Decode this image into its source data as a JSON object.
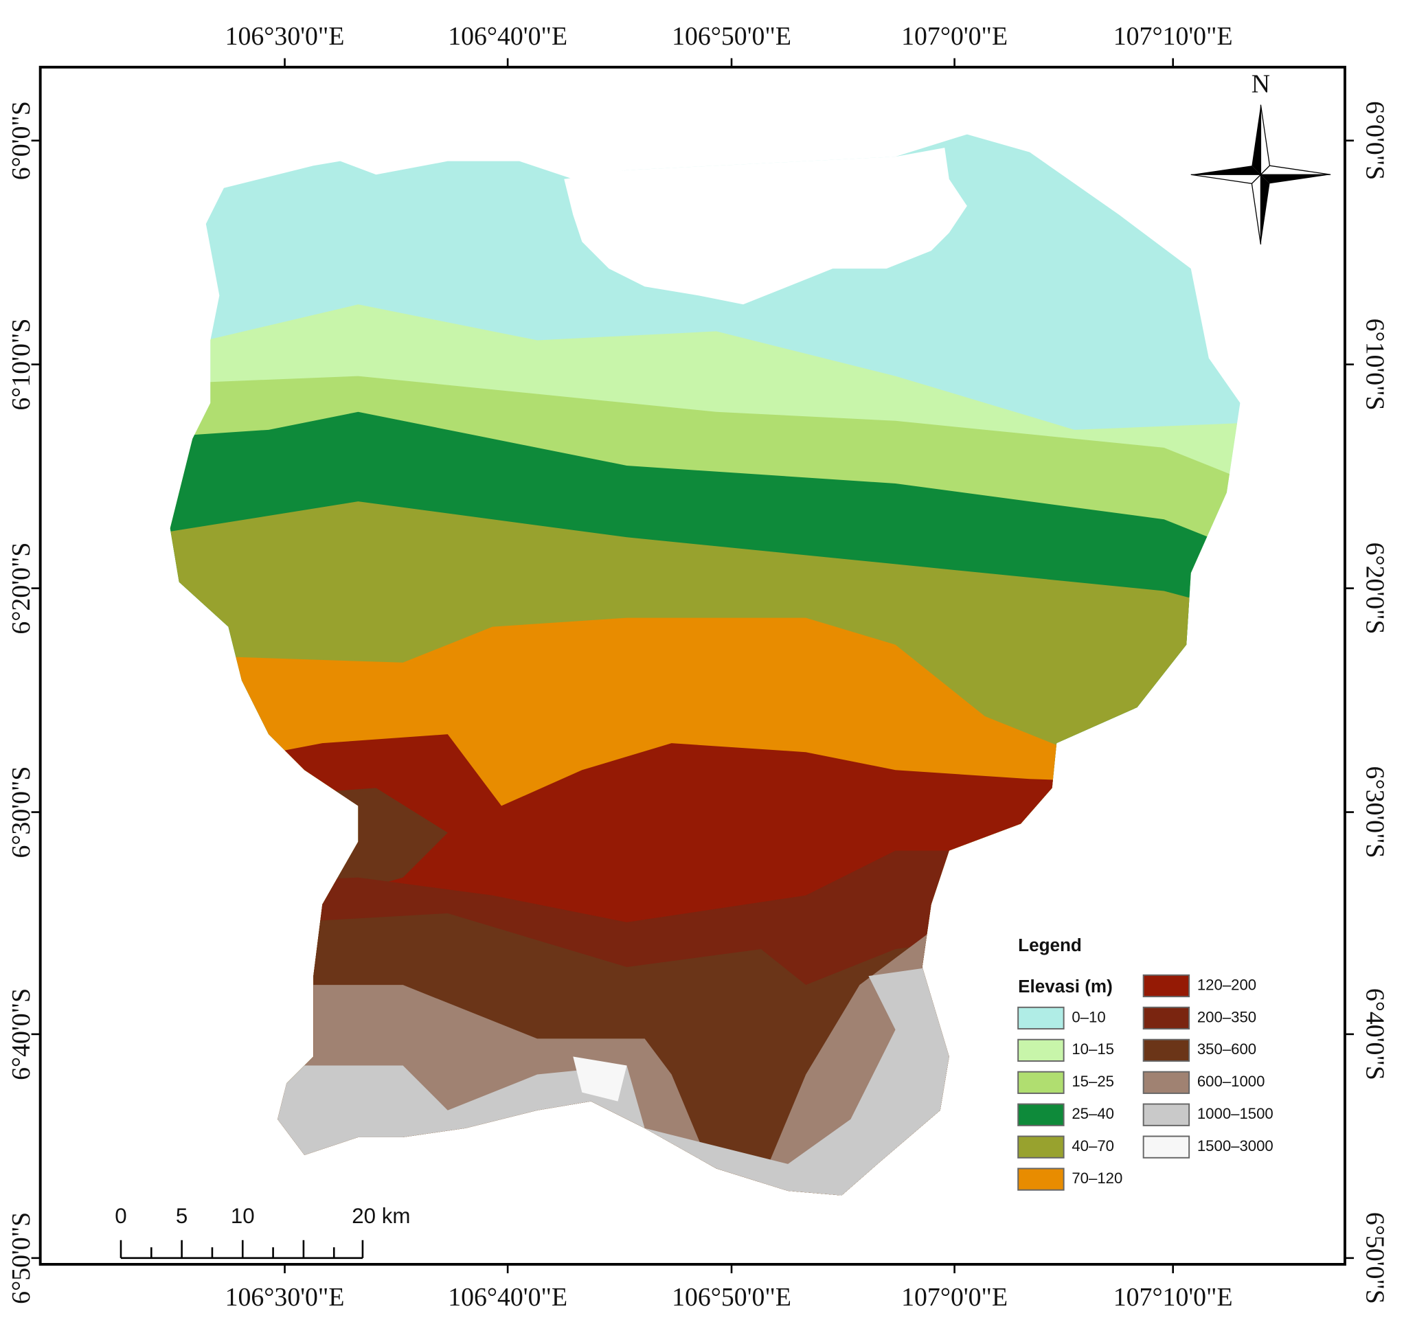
{
  "map": {
    "longitudes": [
      "106°30'0\"E",
      "106°40'0\"E",
      "106°50'0\"E",
      "107°0'0\"E",
      "107°10'0\"E"
    ],
    "latitudes": [
      "6°0'0\"S",
      "6°10'0\"S",
      "6°20'0\"S",
      "6°30'0\"S",
      "6°40'0\"S",
      "6°50'0\"S"
    ],
    "north": "N",
    "scale_bar": [
      "0",
      "5",
      "10",
      "20 km"
    ],
    "legend": {
      "title": "Legend",
      "subtitle": "Elevasi (m)",
      "classes": [
        {
          "label": "0–10",
          "color": "#b0ede6"
        },
        {
          "label": "10–15",
          "color": "#c8f5aa"
        },
        {
          "label": "15–25",
          "color": "#b0de70"
        },
        {
          "label": "25–40",
          "color": "#0e8a3a"
        },
        {
          "label": "40–70",
          "color": "#98a22e"
        },
        {
          "label": "70–120",
          "color": "#e88c00"
        },
        {
          "label": "120–200",
          "color": "#951a05"
        },
        {
          "label": "200–350",
          "color": "#7a2510"
        },
        {
          "label": "350–600",
          "color": "#6b3518"
        },
        {
          "label": "600–1000",
          "color": "#a08272"
        },
        {
          "label": "1000–1500",
          "color": "#c9c9c9"
        },
        {
          "label": "1500–3000",
          "color": "#f7f7f7"
        }
      ]
    }
  }
}
